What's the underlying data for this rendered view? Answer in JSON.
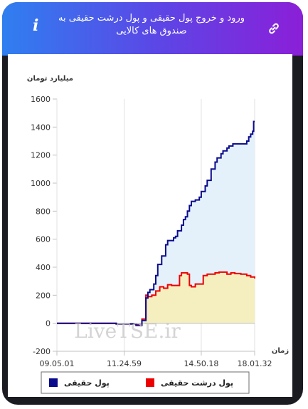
{
  "header": {
    "title": "ورود و خروج پول حقیقی و پول درشت حقیقی به صندوق های کالایی",
    "info_icon": "info-icon",
    "link_icon": "link-icon"
  },
  "chart_data": {
    "type": "line",
    "ylabel": "میلیارد تومان",
    "xlabel": "زمان",
    "ylim": [
      -200,
      1600
    ],
    "yticks": [
      -200,
      0,
      200,
      400,
      600,
      800,
      1000,
      1200,
      1400,
      1600
    ],
    "xticks": [
      "09.05.01",
      "11.24.59",
      "14.50.18",
      "18.01.32"
    ],
    "x_range": [
      0,
      100
    ],
    "x_tick_positions": [
      0,
      34,
      73,
      100
    ],
    "grid": "x-only",
    "legend_position": "bottom",
    "watermark": "LiveTSE.ir",
    "series": [
      {
        "name": "پول حقیقی",
        "color": "#0a0a8c",
        "fill": "#e4f1fb",
        "points": [
          [
            0,
            0
          ],
          [
            30,
            -5
          ],
          [
            40,
            -15
          ],
          [
            43,
            20
          ],
          [
            45,
            180
          ],
          [
            46,
            220
          ],
          [
            47,
            240
          ],
          [
            49,
            280
          ],
          [
            50,
            340
          ],
          [
            51,
            420
          ],
          [
            53,
            480
          ],
          [
            55,
            560
          ],
          [
            56,
            590
          ],
          [
            58,
            590
          ],
          [
            59,
            610
          ],
          [
            60,
            620
          ],
          [
            61,
            660
          ],
          [
            63,
            700
          ],
          [
            64,
            740
          ],
          [
            65,
            760
          ],
          [
            66,
            800
          ],
          [
            67,
            840
          ],
          [
            68,
            870
          ],
          [
            70,
            880
          ],
          [
            72,
            900
          ],
          [
            73,
            940
          ],
          [
            75,
            980
          ],
          [
            76,
            1020
          ],
          [
            78,
            1100
          ],
          [
            80,
            1150
          ],
          [
            81,
            1180
          ],
          [
            83,
            1210
          ],
          [
            84,
            1230
          ],
          [
            86,
            1250
          ],
          [
            87,
            1265
          ],
          [
            89,
            1280
          ],
          [
            95,
            1280
          ],
          [
            96,
            1300
          ],
          [
            97,
            1330
          ],
          [
            98,
            1350
          ],
          [
            99,
            1370
          ],
          [
            99.5,
            1440
          ],
          [
            100,
            1440
          ]
        ]
      },
      {
        "name": "پول درشت حقیقی",
        "color": "#ee0000",
        "fill": "#f5efc0",
        "points": [
          [
            0,
            0
          ],
          [
            30,
            -5
          ],
          [
            40,
            -10
          ],
          [
            43,
            30
          ],
          [
            45,
            200
          ],
          [
            46,
            190
          ],
          [
            48,
            200
          ],
          [
            50,
            230
          ],
          [
            52,
            260
          ],
          [
            54,
            250
          ],
          [
            56,
            275
          ],
          [
            58,
            270
          ],
          [
            60,
            270
          ],
          [
            62,
            340
          ],
          [
            63,
            360
          ],
          [
            66,
            350
          ],
          [
            67,
            270
          ],
          [
            68,
            260
          ],
          [
            70,
            280
          ],
          [
            72,
            280
          ],
          [
            74,
            340
          ],
          [
            76,
            350
          ],
          [
            78,
            350
          ],
          [
            80,
            360
          ],
          [
            82,
            365
          ],
          [
            84,
            365
          ],
          [
            86,
            350
          ],
          [
            88,
            360
          ],
          [
            90,
            355
          ],
          [
            93,
            350
          ],
          [
            96,
            340
          ],
          [
            98,
            330
          ],
          [
            100,
            320
          ]
        ]
      }
    ]
  }
}
